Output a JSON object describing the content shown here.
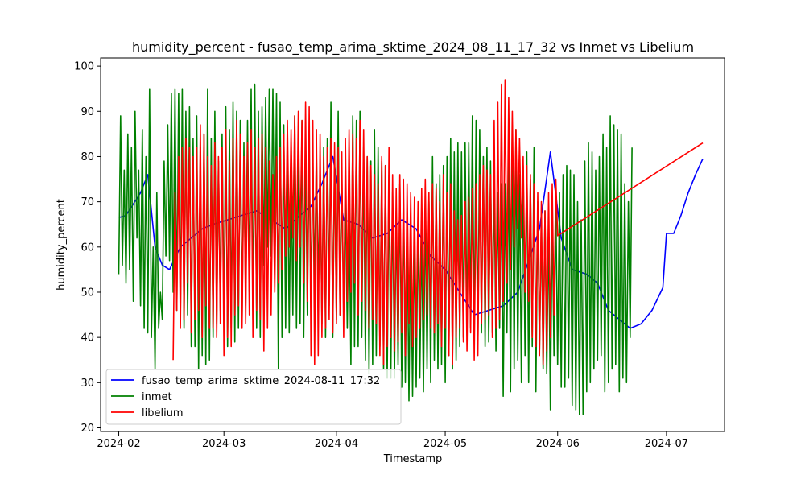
{
  "chart_data": {
    "type": "line",
    "title": "humidity_percent - fusao_temp_arima_sktime_2024_08_11_17_32 vs Inmet vs Libelium",
    "xlabel": "Timestamp",
    "ylabel": "humidity_percent",
    "xlim": [
      "2024-01-27",
      "2024-07-17"
    ],
    "ylim": [
      19.2,
      101.8
    ],
    "x_ticks": [
      "2024-02",
      "2024-03",
      "2024-04",
      "2024-05",
      "2024-06",
      "2024-07"
    ],
    "y_ticks": [
      20,
      30,
      40,
      50,
      60,
      70,
      80,
      90,
      100
    ],
    "grid": false,
    "legend": "lower-left",
    "series": [
      {
        "name": "fusao_temp_arima_sktime_2024-08-11_17:32",
        "color": "#0000ff",
        "x": [
          "2024-02-01",
          "2024-02-03",
          "2024-02-05",
          "2024-02-07",
          "2024-02-09",
          "2024-02-11",
          "2024-02-13",
          "2024-02-15",
          "2024-02-18",
          "2024-02-21",
          "2024-02-24",
          "2024-02-27",
          "2024-03-02",
          "2024-03-06",
          "2024-03-10",
          "2024-03-14",
          "2024-03-18",
          "2024-03-22",
          "2024-03-25",
          "2024-03-28",
          "2024-03-31",
          "2024-04-03",
          "2024-04-07",
          "2024-04-11",
          "2024-04-15",
          "2024-04-19",
          "2024-04-23",
          "2024-04-27",
          "2024-05-01",
          "2024-05-05",
          "2024-05-09",
          "2024-05-13",
          "2024-05-17",
          "2024-05-21",
          "2024-05-24",
          "2024-05-27",
          "2024-05-30",
          "2024-06-02",
          "2024-06-05",
          "2024-06-09",
          "2024-06-12",
          "2024-06-15",
          "2024-06-18",
          "2024-06-21",
          "2024-06-24",
          "2024-06-27",
          "2024-06-30",
          "2024-07-01",
          "2024-07-03",
          "2024-07-05",
          "2024-07-07",
          "2024-07-09",
          "2024-07-11"
        ],
        "y": [
          66.5,
          67.0,
          69.5,
          72.0,
          76.0,
          60.0,
          56.0,
          55.0,
          60.0,
          62.0,
          64.0,
          65.0,
          66.0,
          67.0,
          68.0,
          66.0,
          64.0,
          67.0,
          69.0,
          74.0,
          80.0,
          66.0,
          65.0,
          62.0,
          63.0,
          66.0,
          64.0,
          58.0,
          55.0,
          50.0,
          45.0,
          46.0,
          47.0,
          50.0,
          57.0,
          64.0,
          81.0,
          62.0,
          55.0,
          54.0,
          52.0,
          46.0,
          44.0,
          42.0,
          43.0,
          46.0,
          51.0,
          63.0,
          63.0,
          67.0,
          72.0,
          76.0,
          79.5
        ]
      },
      {
        "name": "inmet",
        "color": "#008000",
        "x_start": "2024-02-01",
        "x_step_days": 1,
        "daily_min": [
          54,
          56,
          52,
          55,
          48,
          62,
          47,
          42,
          41,
          40,
          33,
          42,
          44,
          58,
          57,
          50,
          46,
          44,
          42,
          45,
          38,
          38,
          33,
          36,
          34,
          35,
          40,
          43,
          46,
          44,
          38,
          42,
          39,
          42,
          44,
          47,
          50,
          44,
          42,
          40,
          56,
          60,
          58,
          55,
          33,
          40,
          42,
          41,
          45,
          42,
          43,
          40,
          45,
          48,
          52,
          50,
          43,
          40,
          47,
          40,
          44,
          45,
          46,
          42,
          34,
          38,
          38,
          40,
          35,
          32,
          34,
          36,
          38,
          33,
          31,
          31,
          31,
          34,
          29,
          30,
          26,
          27,
          29,
          31,
          28,
          33,
          30,
          35,
          33,
          34,
          30,
          36,
          33,
          35,
          38,
          40,
          41,
          42,
          40,
          38,
          41,
          38,
          39,
          41,
          37,
          42,
          27,
          41,
          28,
          33,
          35,
          30,
          36,
          30,
          38,
          28,
          37,
          33,
          32,
          24,
          36,
          34,
          29,
          29,
          31,
          25,
          24,
          23,
          23,
          28,
          30,
          33,
          35,
          36,
          28,
          30,
          33,
          34,
          28,
          31,
          30,
          40
        ],
        "daily_max": [
          89,
          77,
          85,
          82,
          90,
          77,
          86,
          80,
          95,
          60,
          72,
          50,
          79,
          87,
          94,
          95,
          94,
          95,
          90,
          91,
          84,
          89,
          82,
          85,
          95,
          84,
          90,
          79,
          85,
          91,
          86,
          92,
          90,
          88,
          83,
          88,
          95,
          96,
          90,
          91,
          93,
          95,
          95,
          94,
          92,
          87,
          85,
          82,
          89,
          83,
          88,
          83,
          81,
          80,
          81,
          78,
          82,
          84,
          92,
          80,
          90,
          76,
          70,
          72,
          89,
          88,
          90,
          82,
          80,
          79,
          86,
          82,
          79,
          78,
          76,
          72,
          68,
          74,
          71,
          68,
          63,
          62,
          67,
          64,
          70,
          70,
          80,
          74,
          76,
          78,
          80,
          84,
          81,
          83,
          81,
          83,
          83,
          89,
          88,
          86,
          80,
          82,
          79,
          75,
          72,
          74,
          74,
          80,
          87,
          86,
          76,
          78,
          81,
          75,
          82,
          70,
          66,
          68,
          65,
          67,
          70,
          72,
          76,
          78,
          77,
          76,
          70,
          66,
          79,
          83,
          81,
          77,
          80,
          85,
          82,
          89,
          87,
          86,
          85,
          74,
          70,
          82
        ]
      },
      {
        "name": "libelium",
        "color": "#ff0000",
        "x_start": "2024-02-16",
        "x_step_days": 1,
        "daily_min": [
          35,
          46,
          42,
          44,
          52,
          41,
          44,
          46,
          40,
          47,
          42,
          42,
          40,
          43,
          36,
          40,
          38,
          45,
          47,
          42,
          43,
          45,
          40,
          46,
          44,
          37,
          42,
          45,
          50,
          52,
          55,
          58,
          60,
          62,
          57,
          60,
          52,
          48,
          36,
          34,
          36,
          40,
          42,
          44,
          41,
          43,
          45,
          40,
          48,
          50,
          52,
          45,
          48,
          46,
          42,
          44,
          43,
          36,
          34,
          38,
          40,
          37,
          39,
          41,
          36,
          43,
          38,
          40,
          42,
          44,
          45,
          42,
          41,
          43,
          38,
          42,
          36,
          34,
          40,
          42,
          39,
          37,
          41,
          35,
          36,
          43,
          44,
          45,
          40,
          42,
          44,
          48,
          52,
          55,
          60,
          64,
          62,
          50,
          48,
          40,
          38,
          36,
          34,
          37,
          40,
          45
        ],
        "daily_max": [
          72,
          80,
          82,
          84,
          82,
          80,
          82,
          87,
          85,
          80,
          78,
          83,
          80,
          82,
          86,
          79,
          84,
          88,
          85,
          80,
          83,
          86,
          82,
          84,
          85,
          82,
          79,
          76,
          80,
          82,
          85,
          88,
          86,
          89,
          90,
          88,
          92,
          91,
          88,
          86,
          85,
          80,
          82,
          84,
          83,
          82,
          81,
          84,
          86,
          85,
          84,
          88,
          86,
          80,
          78,
          76,
          74,
          80,
          78,
          82,
          76,
          73,
          76,
          75,
          74,
          72,
          71,
          70,
          73,
          75,
          72,
          74,
          73,
          70,
          76,
          72,
          74,
          68,
          66,
          67,
          70,
          71,
          73,
          74,
          76,
          78,
          77,
          76,
          88,
          92,
          96,
          97,
          93,
          90,
          86,
          84,
          80,
          78,
          76,
          74,
          72,
          70,
          68,
          72,
          74,
          75
        ],
        "tail": {
          "x": [
            "2024-06-01",
            "2024-07-11"
          ],
          "y": [
            62.5,
            83.0
          ]
        }
      }
    ]
  }
}
